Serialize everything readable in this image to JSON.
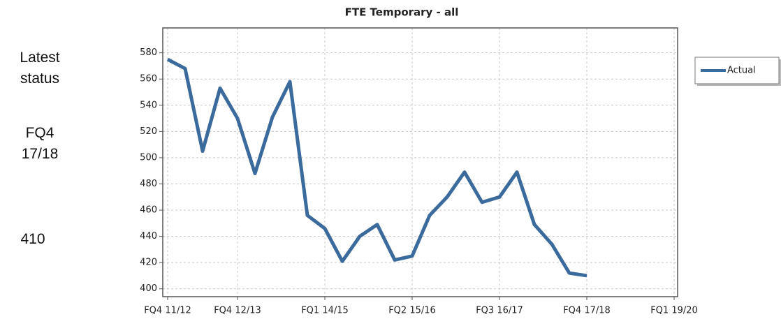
{
  "panel": {
    "heading": "Latest status",
    "period": "FQ4 17/18",
    "value": "410"
  },
  "chart_data": {
    "type": "line",
    "title": "FTE Temporary - all",
    "categories": [
      "FQ4 11/12",
      null,
      null,
      null,
      "FQ4 12/13",
      null,
      null,
      null,
      null,
      "FQ1 14/15",
      null,
      null,
      null,
      null,
      "FQ2 15/16",
      null,
      null,
      null,
      null,
      "FQ3 16/17",
      null,
      null,
      null,
      null,
      "FQ4 17/18",
      null,
      null,
      null,
      null,
      "FQ1 19/20"
    ],
    "series": [
      {
        "name": "Actual",
        "color": "#3b6a9c",
        "values": [
          575,
          568,
          505,
          553,
          530,
          488,
          531,
          558,
          456,
          446,
          421,
          440,
          449,
          422,
          425,
          456,
          470,
          489,
          466,
          470,
          489,
          449,
          434,
          412,
          410,
          null,
          null,
          null,
          null,
          null
        ]
      }
    ],
    "ylim": [
      394,
      599
    ],
    "yticks": [
      400,
      420,
      440,
      460,
      480,
      500,
      520,
      540,
      560,
      580
    ],
    "grid": true,
    "legend": "right"
  }
}
